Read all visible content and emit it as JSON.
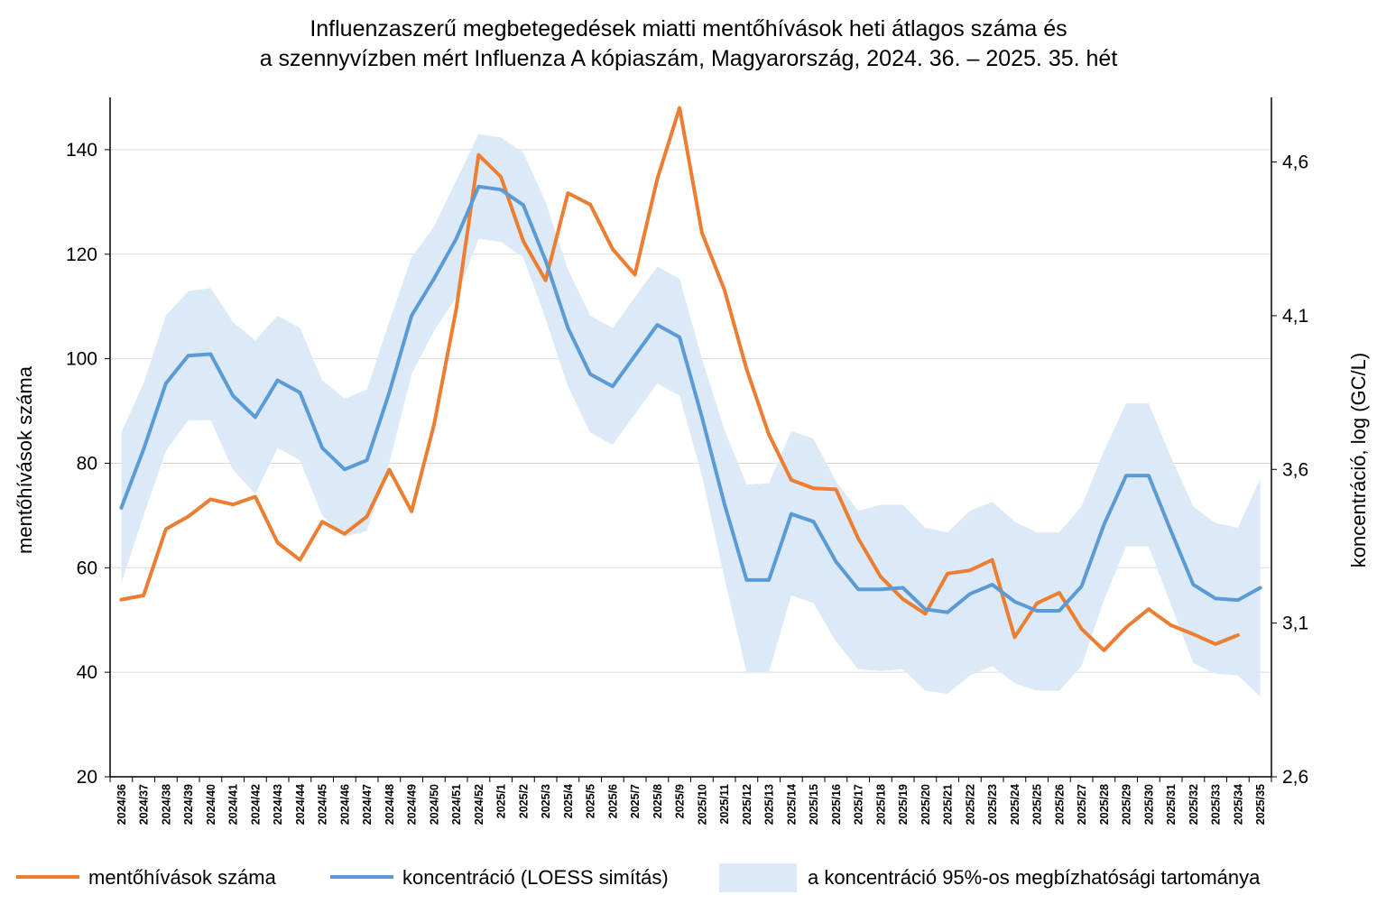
{
  "chart_data": {
    "type": "line",
    "title": [
      "Influenzaszerű megbetegedések miatti mentőhívások heti átlagos száma és",
      "a szennyvízben mért Influenza A kópiaszám, Magyarország, 2024. 36. – 2025. 35. hét"
    ],
    "x_categories": [
      "2024/36",
      "2024/37",
      "2024/38",
      "2024/39",
      "2024/40",
      "2024/41",
      "2024/42",
      "2024/43",
      "2024/44",
      "2024/45",
      "2024/46",
      "2024/47",
      "2024/48",
      "2024/49",
      "2024/50",
      "2024/51",
      "2024/52",
      "2025/1",
      "2025/2",
      "2025/3",
      "2025/4",
      "2025/5",
      "2025/6",
      "2025/7",
      "2025/8",
      "2025/9",
      "2025/10",
      "2025/11",
      "2025/12",
      "2025/13",
      "2025/14",
      "2025/15",
      "2025/16",
      "2025/17",
      "2025/18",
      "2025/19",
      "2025/20",
      "2025/21",
      "2025/22",
      "2025/23",
      "2025/24",
      "2025/25",
      "2025/26",
      "2025/27",
      "2025/28",
      "2025/29",
      "2025/30",
      "2025/31",
      "2025/32",
      "2025/33",
      "2025/34",
      "2025/35"
    ],
    "y_left": {
      "label": "mentőhívások száma",
      "min": 20,
      "max": 150,
      "ticks": [
        20,
        40,
        60,
        80,
        100,
        120,
        140
      ]
    },
    "y_right": {
      "label": "koncentráció, log (GC/L)",
      "min": 2.6,
      "max": 4.81,
      "ticks": [
        "2,6",
        "3,1",
        "3,6",
        "4,1",
        "4,6"
      ],
      "tick_values": [
        2.6,
        3.1,
        3.6,
        4.1,
        4.6
      ]
    },
    "grid": "horizontal",
    "legend_position": "bottom",
    "series": [
      {
        "name": "mentőhívások száma",
        "axis": "left",
        "color": "#ed7d31",
        "values": [
          53.9,
          54.7,
          67.4,
          69.8,
          73.1,
          72.1,
          73.6,
          64.8,
          61.5,
          68.8,
          66.5,
          69.8,
          78.8,
          70.8,
          87.3,
          109.5,
          139.0,
          134.8,
          122.5,
          115.0,
          131.7,
          129.5,
          121.0,
          116.1,
          134.4,
          148.0,
          124.1,
          113.3,
          98.0,
          85.5,
          76.8,
          75.2,
          75.0,
          65.6,
          58.3,
          54.0,
          51.2,
          58.9,
          59.5,
          61.5,
          46.7,
          53.2,
          55.2,
          48.3,
          44.2,
          48.6,
          52.1,
          49.0,
          47.3,
          45.4,
          47.1,
          null
        ]
      },
      {
        "name": "koncentráció (LOESS simítás)",
        "axis": "right",
        "color": "#5b9bd5",
        "values": [
          3.475,
          3.665,
          3.88,
          3.97,
          3.975,
          3.84,
          3.77,
          3.89,
          3.85,
          3.67,
          3.6,
          3.63,
          3.85,
          4.1,
          4.22,
          4.35,
          4.52,
          4.51,
          4.46,
          4.28,
          4.06,
          3.91,
          3.87,
          3.97,
          4.07,
          4.03,
          3.77,
          3.49,
          3.24,
          3.24,
          3.455,
          3.43,
          3.3,
          3.21,
          3.21,
          3.215,
          3.145,
          3.135,
          3.195,
          3.225,
          3.17,
          3.14,
          3.14,
          3.22,
          3.42,
          3.58,
          3.58,
          3.4,
          3.225,
          3.18,
          3.175,
          3.215
        ]
      },
      {
        "name": "a koncentráció 95%-os megbízhatósági tartománya",
        "axis": "right",
        "color": "#dce9f6",
        "type": "band",
        "upper": [
          3.72,
          3.88,
          4.1,
          4.18,
          4.19,
          4.08,
          4.02,
          4.1,
          4.06,
          3.89,
          3.83,
          3.86,
          4.08,
          4.29,
          4.39,
          4.54,
          4.69,
          4.68,
          4.63,
          4.47,
          4.25,
          4.1,
          4.06,
          4.16,
          4.26,
          4.22,
          3.96,
          3.73,
          3.55,
          3.555,
          3.725,
          3.7,
          3.56,
          3.465,
          3.485,
          3.485,
          3.41,
          3.395,
          3.465,
          3.495,
          3.43,
          3.395,
          3.395,
          3.48,
          3.66,
          3.815,
          3.815,
          3.64,
          3.48,
          3.425,
          3.41,
          3.57
        ],
        "lower": [
          3.23,
          3.45,
          3.66,
          3.76,
          3.76,
          3.6,
          3.52,
          3.67,
          3.63,
          3.45,
          3.38,
          3.4,
          3.62,
          3.91,
          4.05,
          4.16,
          4.35,
          4.34,
          4.29,
          4.09,
          3.87,
          3.72,
          3.68,
          3.78,
          3.88,
          3.84,
          3.58,
          3.25,
          2.94,
          2.94,
          3.19,
          3.165,
          3.04,
          2.95,
          2.945,
          2.95,
          2.88,
          2.87,
          2.93,
          2.96,
          2.905,
          2.88,
          2.88,
          2.96,
          3.175,
          3.35,
          3.35,
          3.16,
          2.97,
          2.935,
          2.93,
          2.86
        ]
      }
    ]
  }
}
